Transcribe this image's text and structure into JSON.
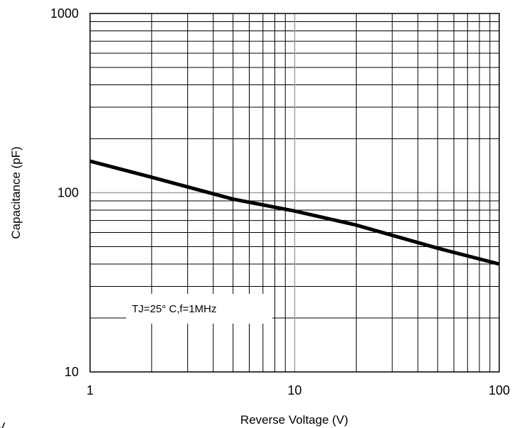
{
  "chart_data": {
    "type": "line",
    "title": "",
    "xlabel": "Reverse Voltage (V)",
    "ylabel": "Capacitance (pF)",
    "xscale": "log",
    "yscale": "log",
    "xlim": [
      1,
      100
    ],
    "ylim": [
      10,
      1000
    ],
    "grid": true,
    "xticks": [
      {
        "value": 1,
        "label": "1"
      },
      {
        "value": 10,
        "label": "10"
      },
      {
        "value": 100,
        "label": "100"
      }
    ],
    "yticks": [
      {
        "value": 10,
        "label": "10"
      },
      {
        "value": 100,
        "label": "100"
      },
      {
        "value": 1000,
        "label": "1000"
      }
    ],
    "series": [
      {
        "x": [
          1,
          2,
          5,
          10,
          20,
          50,
          100
        ],
        "y": [
          150,
          122,
          92,
          79,
          66,
          49,
          40
        ],
        "color": "#000000"
      }
    ],
    "annotations": [
      {
        "text": "TJ=25° C,f=1MHz"
      }
    ],
    "colors": {
      "grid": "#000000",
      "decade_grid": "#a0a0a0",
      "curve": "#000000"
    }
  },
  "corner_fragment": "V"
}
